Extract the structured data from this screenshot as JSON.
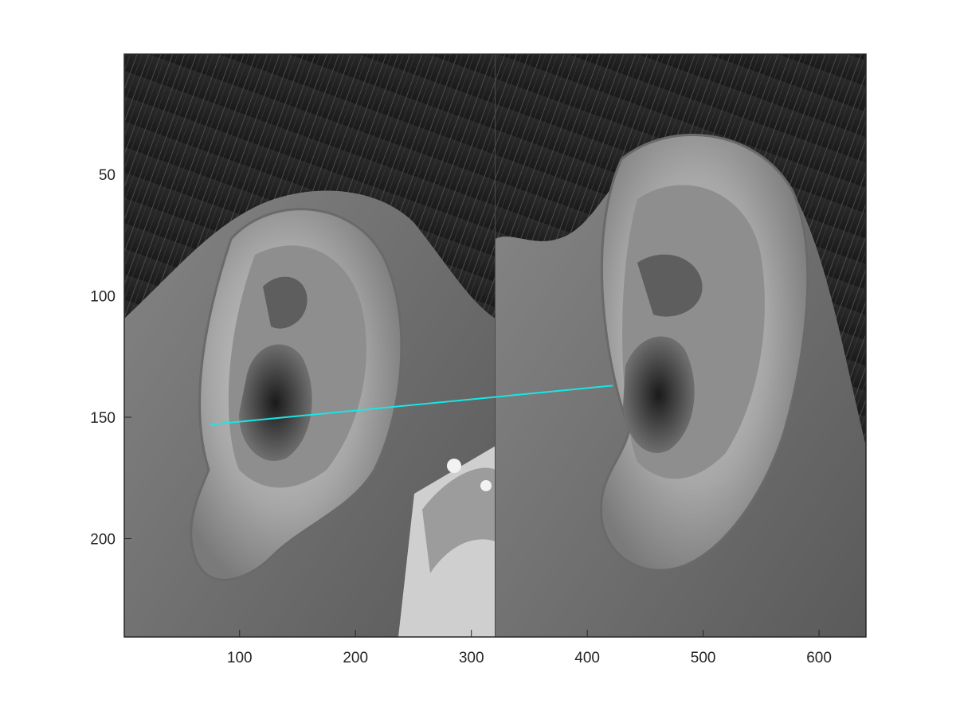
{
  "figure": {
    "image_description_keys": {
      "left_panel": "ear photo",
      "right_panel": "ear photo"
    },
    "x_axis": {
      "range": [
        0.5,
        640.5
      ],
      "ticks": [
        {
          "value": 100,
          "label": "100"
        },
        {
          "value": 200,
          "label": "200"
        },
        {
          "value": 300,
          "label": "300"
        },
        {
          "value": 400,
          "label": "400"
        },
        {
          "value": 500,
          "label": "500"
        },
        {
          "value": 600,
          "label": "600"
        }
      ]
    },
    "y_axis": {
      "range": [
        0.5,
        240.5
      ],
      "direction": "reverse",
      "ticks": [
        {
          "value": 50,
          "label": "50"
        },
        {
          "value": 100,
          "label": "100"
        },
        {
          "value": 150,
          "label": "150"
        },
        {
          "value": 200,
          "label": "200"
        }
      ]
    },
    "panel_split_x": 320.5,
    "match_line": {
      "color": "#19e6e6",
      "from": [
        75,
        153
      ],
      "to": [
        422,
        137
      ]
    },
    "colors": {
      "axis": "#262626",
      "background": "#ffffff"
    }
  }
}
